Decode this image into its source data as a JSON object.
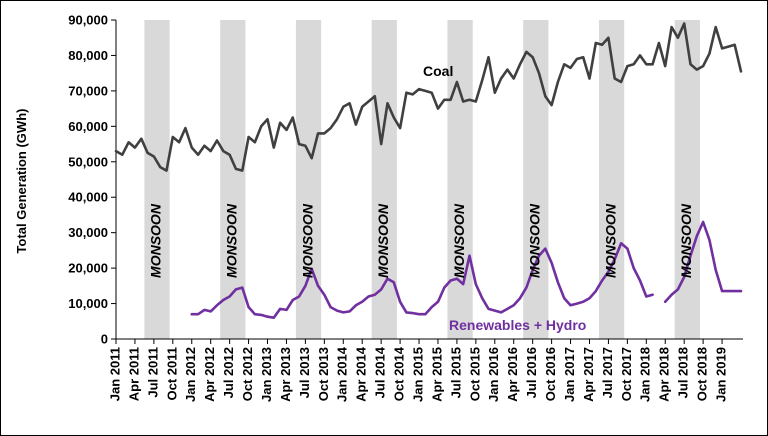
{
  "chart_data": {
    "type": "line",
    "ylabel": "Total Generation (GWh)",
    "ylim": [
      0,
      90000
    ],
    "y_ticks": [
      "0",
      "10,000",
      "20,000",
      "30,000",
      "40,000",
      "50,000",
      "60,000",
      "70,000",
      "80,000",
      "90,000"
    ],
    "x_start": "Jan 2011",
    "x_tick_labels": [
      "Jan 2011",
      "Apr 2011",
      "Jul 2011",
      "Oct 2011",
      "Jan 2012",
      "Apr 2012",
      "Jul 2012",
      "Oct 2012",
      "Jan 2013",
      "Apr 2013",
      "Jul 2013",
      "Oct 2013",
      "Jan 2014",
      "Apr 2014",
      "Jul 2014",
      "Oct 2014",
      "Jan 2015",
      "Apr 2015",
      "Jul 2015",
      "Oct 2015",
      "Jan 2016",
      "Apr 2016",
      "Jul 2016",
      "Oct 2016",
      "Jan 2017",
      "Apr 2017",
      "Jul 2017",
      "Oct 2017",
      "Jan 2018",
      "Apr 2018",
      "Jul 2018",
      "Oct 2018",
      "Jan 2019"
    ],
    "gridlines": false,
    "shaded_periods": [
      {
        "label": "MONSOON",
        "start": "Jun 2011",
        "end": "Sep 2011"
      },
      {
        "label": "MONSOON",
        "start": "Jun 2012",
        "end": "Sep 2012"
      },
      {
        "label": "MONSOON",
        "start": "Jun 2013",
        "end": "Sep 2013"
      },
      {
        "label": "MONSOON",
        "start": "Jun 2014",
        "end": "Sep 2014"
      },
      {
        "label": "MONSOON",
        "start": "Jun 2015",
        "end": "Sep 2015"
      },
      {
        "label": "MONSOON",
        "start": "Jun 2016",
        "end": "Sep 2016"
      },
      {
        "label": "MONSOON",
        "start": "Jun 2017",
        "end": "Sep 2017"
      },
      {
        "label": "MONSOON",
        "start": "Jun 2018",
        "end": "Sep 2018"
      }
    ],
    "series": [
      {
        "name": "Coal",
        "color": "#404040",
        "values": [
          53000,
          52000,
          55500,
          54000,
          56500,
          52500,
          51500,
          48500,
          47500,
          57000,
          55500,
          59500,
          54000,
          52000,
          54500,
          53000,
          56000,
          53000,
          52000,
          48000,
          47500,
          57000,
          55500,
          60000,
          62000,
          54000,
          61000,
          59000,
          62500,
          55000,
          54500,
          51000,
          58000,
          58000,
          59500,
          62000,
          65500,
          66500,
          60500,
          65500,
          67000,
          68500,
          55000,
          66500,
          62500,
          59500,
          69500,
          69000,
          70500,
          70000,
          69500,
          65000,
          67500,
          67500,
          72500,
          67000,
          67500,
          67000,
          73000,
          79500,
          69500,
          73500,
          76000,
          73500,
          77500,
          81000,
          79500,
          75000,
          68500,
          66000,
          72500,
          77500,
          76500,
          79000,
          79500,
          73500,
          83500,
          83000,
          85000,
          73500,
          72500,
          77000,
          77500,
          80000,
          77500,
          77500,
          83500,
          77000,
          88000,
          85000,
          89000,
          77500,
          76000,
          77000,
          80500,
          88000,
          82000,
          82500,
          83000,
          75500
        ]
      },
      {
        "name": "Renewables + Hydro",
        "color": "#7030a0",
        "values": [
          null,
          null,
          null,
          null,
          null,
          null,
          null,
          null,
          null,
          null,
          null,
          null,
          7000,
          7000,
          8200,
          7800,
          9500,
          11000,
          12000,
          14000,
          14500,
          9000,
          7000,
          6800,
          6300,
          6000,
          8500,
          8200,
          11000,
          12000,
          15000,
          19800,
          15000,
          12500,
          9000,
          8000,
          7500,
          7800,
          9500,
          10500,
          12000,
          12500,
          14000,
          17000,
          16000,
          10500,
          7500,
          7300,
          7000,
          7000,
          9000,
          10500,
          14500,
          16500,
          17000,
          15500,
          23500,
          15500,
          11500,
          8500,
          8000,
          7500,
          8500,
          9500,
          11500,
          14500,
          19500,
          23500,
          25500,
          21500,
          16000,
          11500,
          9500,
          10000,
          10500,
          11500,
          13500,
          16500,
          19000,
          22500,
          27000,
          25500,
          20000,
          16500,
          12000,
          12500,
          null,
          10500,
          12500,
          14000,
          17500,
          23500,
          29000,
          33000,
          28000,
          19500,
          13500,
          13500,
          13500,
          13500
        ]
      }
    ]
  },
  "annotations": {
    "band_label": "MONSOON",
    "coal_label": "Coal",
    "renew_label": "Renewables + Hydro"
  }
}
